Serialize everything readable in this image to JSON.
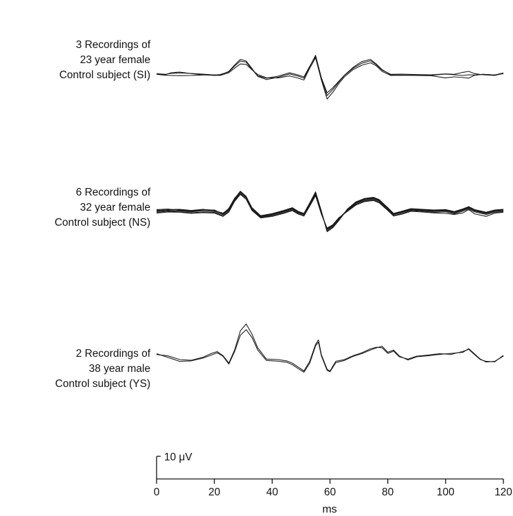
{
  "chart_data": {
    "type": "line",
    "xlabel": "ms",
    "xlim": [
      0,
      120
    ],
    "x_ticks": [
      "0",
      "20",
      "40",
      "60",
      "80",
      "100",
      "120"
    ],
    "scale_bar_label": "10 μV",
    "scale_bar_value": 10,
    "grid": false,
    "panels": [
      {
        "label_lines": [
          "3 Recordings of",
          "23 year female",
          "Control subject (SI)"
        ],
        "traces": [
          {
            "x": [
              0,
              3,
              5,
              8,
              12,
              16,
              20,
              22,
              25,
              27,
              29,
              31,
              33,
              35,
              38,
              42,
              46,
              49,
              51,
              53,
              55,
              57,
              59,
              61,
              63,
              65,
              68,
              71,
              74,
              76,
              78,
              81,
              85,
              90,
              95,
              100,
              103,
              106,
              108,
              110,
              113,
              117,
              120
            ],
            "y": [
              0,
              -0.3,
              0.6,
              0.9,
              0.2,
              -0.3,
              -0.6,
              -0.5,
              1.2,
              4.0,
              6.5,
              5.8,
              2.5,
              -1.0,
              -2.4,
              -1.4,
              0.1,
              -0.9,
              -1.8,
              3.2,
              8.3,
              -1.5,
              -8.3,
              -6.0,
              -3.2,
              -0.5,
              3.0,
              5.5,
              6.5,
              4.5,
              2.0,
              -0.3,
              -0.4,
              -0.4,
              -0.5,
              0.0,
              -0.3,
              -0.6,
              -0.3,
              -0.4,
              -0.1,
              -0.4,
              0.5
            ]
          },
          {
            "x": [
              0,
              3,
              5,
              8,
              12,
              16,
              20,
              22,
              25,
              27,
              29,
              31,
              33,
              35,
              38,
              42,
              46,
              49,
              51,
              53,
              55,
              57,
              59,
              61,
              63,
              65,
              68,
              71,
              74,
              76,
              78,
              81,
              85,
              90,
              95,
              100,
              103,
              106,
              108,
              110,
              113,
              117,
              120
            ],
            "y": [
              0.2,
              -0.1,
              0.3,
              0.5,
              0.3,
              0.0,
              -0.4,
              -0.2,
              1.0,
              3.5,
              5.8,
              5.3,
              2.1,
              -0.8,
              -1.8,
              -0.9,
              0.6,
              -0.4,
              -1.2,
              3.5,
              7.8,
              -1.8,
              -9.5,
              -6.8,
              -3.6,
              -0.6,
              2.6,
              4.8,
              5.9,
              4.2,
              1.8,
              -0.1,
              0.0,
              -0.2,
              -0.3,
              0.1,
              -0.1,
              0.8,
              1.2,
              0.2,
              -0.3,
              -0.6,
              0.4
            ]
          },
          {
            "x": [
              0,
              3,
              5,
              8,
              12,
              16,
              20,
              22,
              25,
              27,
              29,
              31,
              33,
              35,
              38,
              42,
              46,
              49,
              51,
              53,
              55,
              57,
              59,
              61,
              63,
              65,
              68,
              71,
              74,
              76,
              78,
              81,
              85,
              90,
              95,
              100,
              103,
              106,
              108,
              110,
              113,
              117,
              120
            ],
            "y": [
              -0.1,
              -0.5,
              -0.6,
              -0.7,
              -0.6,
              -0.4,
              -0.3,
              -0.6,
              0.6,
              2.6,
              4.5,
              4.3,
              1.9,
              -0.2,
              -1.6,
              -1.7,
              -0.8,
              -1.8,
              -2.6,
              2.6,
              7.2,
              -2.5,
              -11.0,
              -8.0,
              -4.3,
              -1.2,
              2.0,
              3.9,
              5.0,
              3.7,
              1.2,
              -0.6,
              -0.5,
              -0.6,
              -0.7,
              -1.7,
              -1.2,
              -1.5,
              -1.8,
              -0.5,
              -0.1,
              -0.4,
              0.2
            ]
          }
        ]
      },
      {
        "label_lines": [
          "6 Recordings of",
          "32 year female",
          "Control subject (NS)"
        ],
        "traces": [
          {
            "x": [
              0,
              4,
              8,
              12,
              16,
              20,
              23,
              25,
              27,
              29,
              31,
              33,
              36,
              40,
              44,
              47,
              49,
              51,
              53,
              55,
              57,
              59,
              61,
              63,
              66,
              69,
              72,
              75,
              77,
              80,
              82,
              85,
              88,
              92,
              96,
              100,
              103,
              106,
              108,
              110,
              114,
              117,
              120
            ],
            "y": [
              0,
              0.3,
              0.1,
              -0.2,
              0.2,
              0.0,
              -1.5,
              0.5,
              5.0,
              8.3,
              6.0,
              1.0,
              -2.4,
              -1.6,
              -0.2,
              1.0,
              -0.6,
              -1.5,
              3.0,
              7.8,
              -0.5,
              -8.2,
              -6.5,
              -3.5,
              0.5,
              3.5,
              5.0,
              5.5,
              4.5,
              1.0,
              -1.5,
              -0.5,
              0.6,
              0.3,
              0.0,
              0.2,
              -0.7,
              0.5,
              1.5,
              0.2,
              -1.0,
              0.0,
              0.3
            ]
          },
          {
            "x": [
              0,
              4,
              8,
              12,
              16,
              20,
              23,
              25,
              27,
              29,
              31,
              33,
              36,
              40,
              44,
              47,
              49,
              51,
              53,
              55,
              57,
              59,
              61,
              63,
              66,
              69,
              72,
              75,
              77,
              80,
              82,
              85,
              88,
              92,
              96,
              100,
              103,
              106,
              108,
              110,
              114,
              117,
              120
            ],
            "y": [
              0.4,
              0.6,
              0.6,
              0.3,
              0.7,
              0.3,
              -0.8,
              1.1,
              5.6,
              8.9,
              6.6,
              1.5,
              -2.1,
              -1.2,
              0.2,
              1.4,
              -0.2,
              -1.1,
              3.5,
              8.4,
              0.0,
              -8.7,
              -6.9,
              -4.0,
              0.8,
              4.0,
              5.5,
              6.0,
              5.0,
              1.4,
              -1.1,
              -0.1,
              1.0,
              0.7,
              0.4,
              0.6,
              -0.3,
              0.9,
              1.9,
              0.6,
              -0.6,
              0.4,
              0.7
            ]
          },
          {
            "x": [
              0,
              4,
              8,
              12,
              16,
              20,
              23,
              25,
              27,
              29,
              31,
              33,
              36,
              40,
              44,
              47,
              49,
              51,
              53,
              55,
              57,
              59,
              61,
              63,
              66,
              69,
              72,
              75,
              77,
              80,
              82,
              85,
              88,
              92,
              96,
              100,
              103,
              106,
              108,
              110,
              114,
              117,
              120
            ],
            "y": [
              -0.4,
              0.0,
              -0.3,
              -0.6,
              -0.3,
              -0.4,
              -2.0,
              0.0,
              4.6,
              7.8,
              5.5,
              0.6,
              -2.7,
              -2.0,
              -0.6,
              0.6,
              -1.0,
              -1.9,
              2.5,
              7.2,
              -1.0,
              -7.7,
              -6.1,
              -3.1,
              0.2,
              3.1,
              4.6,
              5.1,
              4.1,
              0.6,
              -1.9,
              -0.9,
              0.3,
              0.0,
              -0.4,
              -0.2,
              -1.1,
              0.1,
              1.1,
              -0.2,
              -1.4,
              -0.4,
              -0.1
            ]
          },
          {
            "x": [
              0,
              4,
              8,
              12,
              16,
              20,
              23,
              25,
              27,
              29,
              31,
              33,
              36,
              40,
              44,
              47,
              49,
              51,
              53,
              55,
              57,
              59,
              61,
              63,
              66,
              69,
              72,
              75,
              77,
              80,
              82,
              85,
              88,
              92,
              96,
              100,
              103,
              106,
              108,
              110,
              114,
              117,
              120
            ],
            "y": [
              0.8,
              1.0,
              0.4,
              0.0,
              0.6,
              0.6,
              -1.2,
              0.8,
              5.3,
              8.6,
              6.3,
              1.3,
              -2.2,
              -1.4,
              0.0,
              1.2,
              -0.4,
              -1.3,
              3.2,
              8.1,
              -0.3,
              -8.0,
              -6.3,
              -3.3,
              0.7,
              3.8,
              5.3,
              5.8,
              4.8,
              1.2,
              -1.3,
              -0.3,
              0.8,
              0.5,
              0.2,
              0.5,
              -0.5,
              0.7,
              1.7,
              0.4,
              -0.8,
              0.2,
              0.5
            ]
          },
          {
            "x": [
              0,
              4,
              8,
              12,
              16,
              20,
              23,
              25,
              27,
              29,
              31,
              33,
              36,
              40,
              44,
              47,
              49,
              51,
              53,
              55,
              57,
              59,
              61,
              63,
              66,
              69,
              72,
              75,
              77,
              80,
              82,
              85,
              88,
              92,
              96,
              100,
              103,
              106,
              108,
              110,
              114,
              117,
              120
            ],
            "y": [
              -0.8,
              -0.3,
              -0.4,
              -0.9,
              -0.6,
              -0.8,
              -2.2,
              -0.3,
              4.4,
              7.5,
              5.3,
              0.4,
              -2.9,
              -2.2,
              -0.9,
              0.3,
              -1.2,
              -2.1,
              2.3,
              6.9,
              -1.2,
              -7.4,
              -5.9,
              -2.9,
              0.0,
              2.8,
              4.3,
              4.8,
              3.8,
              0.4,
              -2.1,
              -1.2,
              0.0,
              -0.3,
              -0.7,
              -0.9,
              -1.4,
              -0.7,
              0.8,
              -1.1,
              -2.2,
              -0.8,
              -0.4
            ]
          },
          {
            "x": [
              0,
              4,
              8,
              12,
              16,
              20,
              23,
              25,
              27,
              29,
              31,
              33,
              36,
              40,
              44,
              47,
              49,
              51,
              53,
              55,
              57,
              59,
              61,
              63,
              66,
              69,
              72,
              75,
              77,
              80,
              82,
              85,
              88,
              92,
              96,
              100,
              103,
              106,
              108,
              110,
              114,
              117,
              120
            ],
            "y": [
              0.2,
              0.8,
              0.9,
              0.4,
              0.9,
              0.5,
              -1.0,
              1.3,
              5.8,
              8.5,
              6.2,
              1.6,
              -1.9,
              -1.0,
              0.4,
              1.6,
              0.0,
              -0.9,
              3.7,
              8.6,
              0.2,
              -9.0,
              -7.2,
              -4.2,
              1.0,
              4.2,
              5.7,
              6.2,
              5.2,
              1.6,
              -0.9,
              0.1,
              1.2,
              0.9,
              0.6,
              0.8,
              -0.1,
              1.1,
              2.1,
              0.8,
              -0.4,
              0.6,
              0.9
            ]
          }
        ]
      },
      {
        "label_lines": [
          "2 Recordings of",
          "38 year male",
          "Control subject (YS)"
        ],
        "traces": [
          {
            "x": [
              0,
              4,
              8,
              12,
              16,
              19,
              21,
              23,
              25,
              27,
              29,
              31,
              33,
              35,
              38,
              42,
              45,
              47,
              49,
              51,
              53,
              55,
              56,
              57,
              59,
              60,
              62,
              65,
              68,
              71,
              74,
              76,
              78,
              80,
              82,
              84,
              87,
              90,
              94,
              98,
              102,
              106,
              108,
              110,
              112,
              114,
              117,
              120
            ],
            "y": [
              1.0,
              0.4,
              -1.2,
              -1.5,
              -0.2,
              1.5,
              2.3,
              0.5,
              -2.8,
              3.0,
              11.5,
              14.5,
              10.0,
              4.0,
              -1.0,
              -1.2,
              -1.8,
              -2.8,
              -4.5,
              -6.2,
              -2.0,
              5.5,
              7.5,
              1.0,
              -5.5,
              -6.3,
              -2.0,
              -1.2,
              0.5,
              1.8,
              3.5,
              4.2,
              4.0,
              1.5,
              2.5,
              0.0,
              -1.0,
              0.3,
              0.8,
              1.4,
              1.1,
              2.4,
              3.3,
              1.0,
              -1.2,
              -2.0,
              -2.2,
              0.6
            ]
          },
          {
            "x": [
              0,
              4,
              8,
              12,
              16,
              19,
              21,
              23,
              25,
              27,
              29,
              31,
              33,
              35,
              38,
              42,
              45,
              47,
              49,
              51,
              53,
              55,
              56,
              57,
              59,
              60,
              62,
              65,
              68,
              71,
              74,
              76,
              78,
              80,
              82,
              84,
              87,
              90,
              94,
              98,
              102,
              106,
              108,
              110,
              112,
              114,
              117,
              120
            ],
            "y": [
              1.4,
              -0.3,
              -2.0,
              -1.8,
              -0.6,
              0.8,
              1.8,
              0.2,
              -3.2,
              2.3,
              9.5,
              12.0,
              8.5,
              3.0,
              -1.6,
              -1.9,
              -2.4,
              -3.5,
              -5.2,
              -6.8,
              -2.8,
              4.8,
              6.5,
              0.5,
              -6.0,
              -6.6,
              -2.6,
              -1.6,
              0.2,
              1.4,
              3.0,
              3.9,
              4.7,
              2.0,
              3.0,
              0.4,
              -1.4,
              0.0,
              0.5,
              1.1,
              1.5,
              2.0,
              3.6,
              1.3,
              -1.0,
              -2.3,
              -2.0,
              0.3
            ]
          }
        ]
      }
    ]
  }
}
